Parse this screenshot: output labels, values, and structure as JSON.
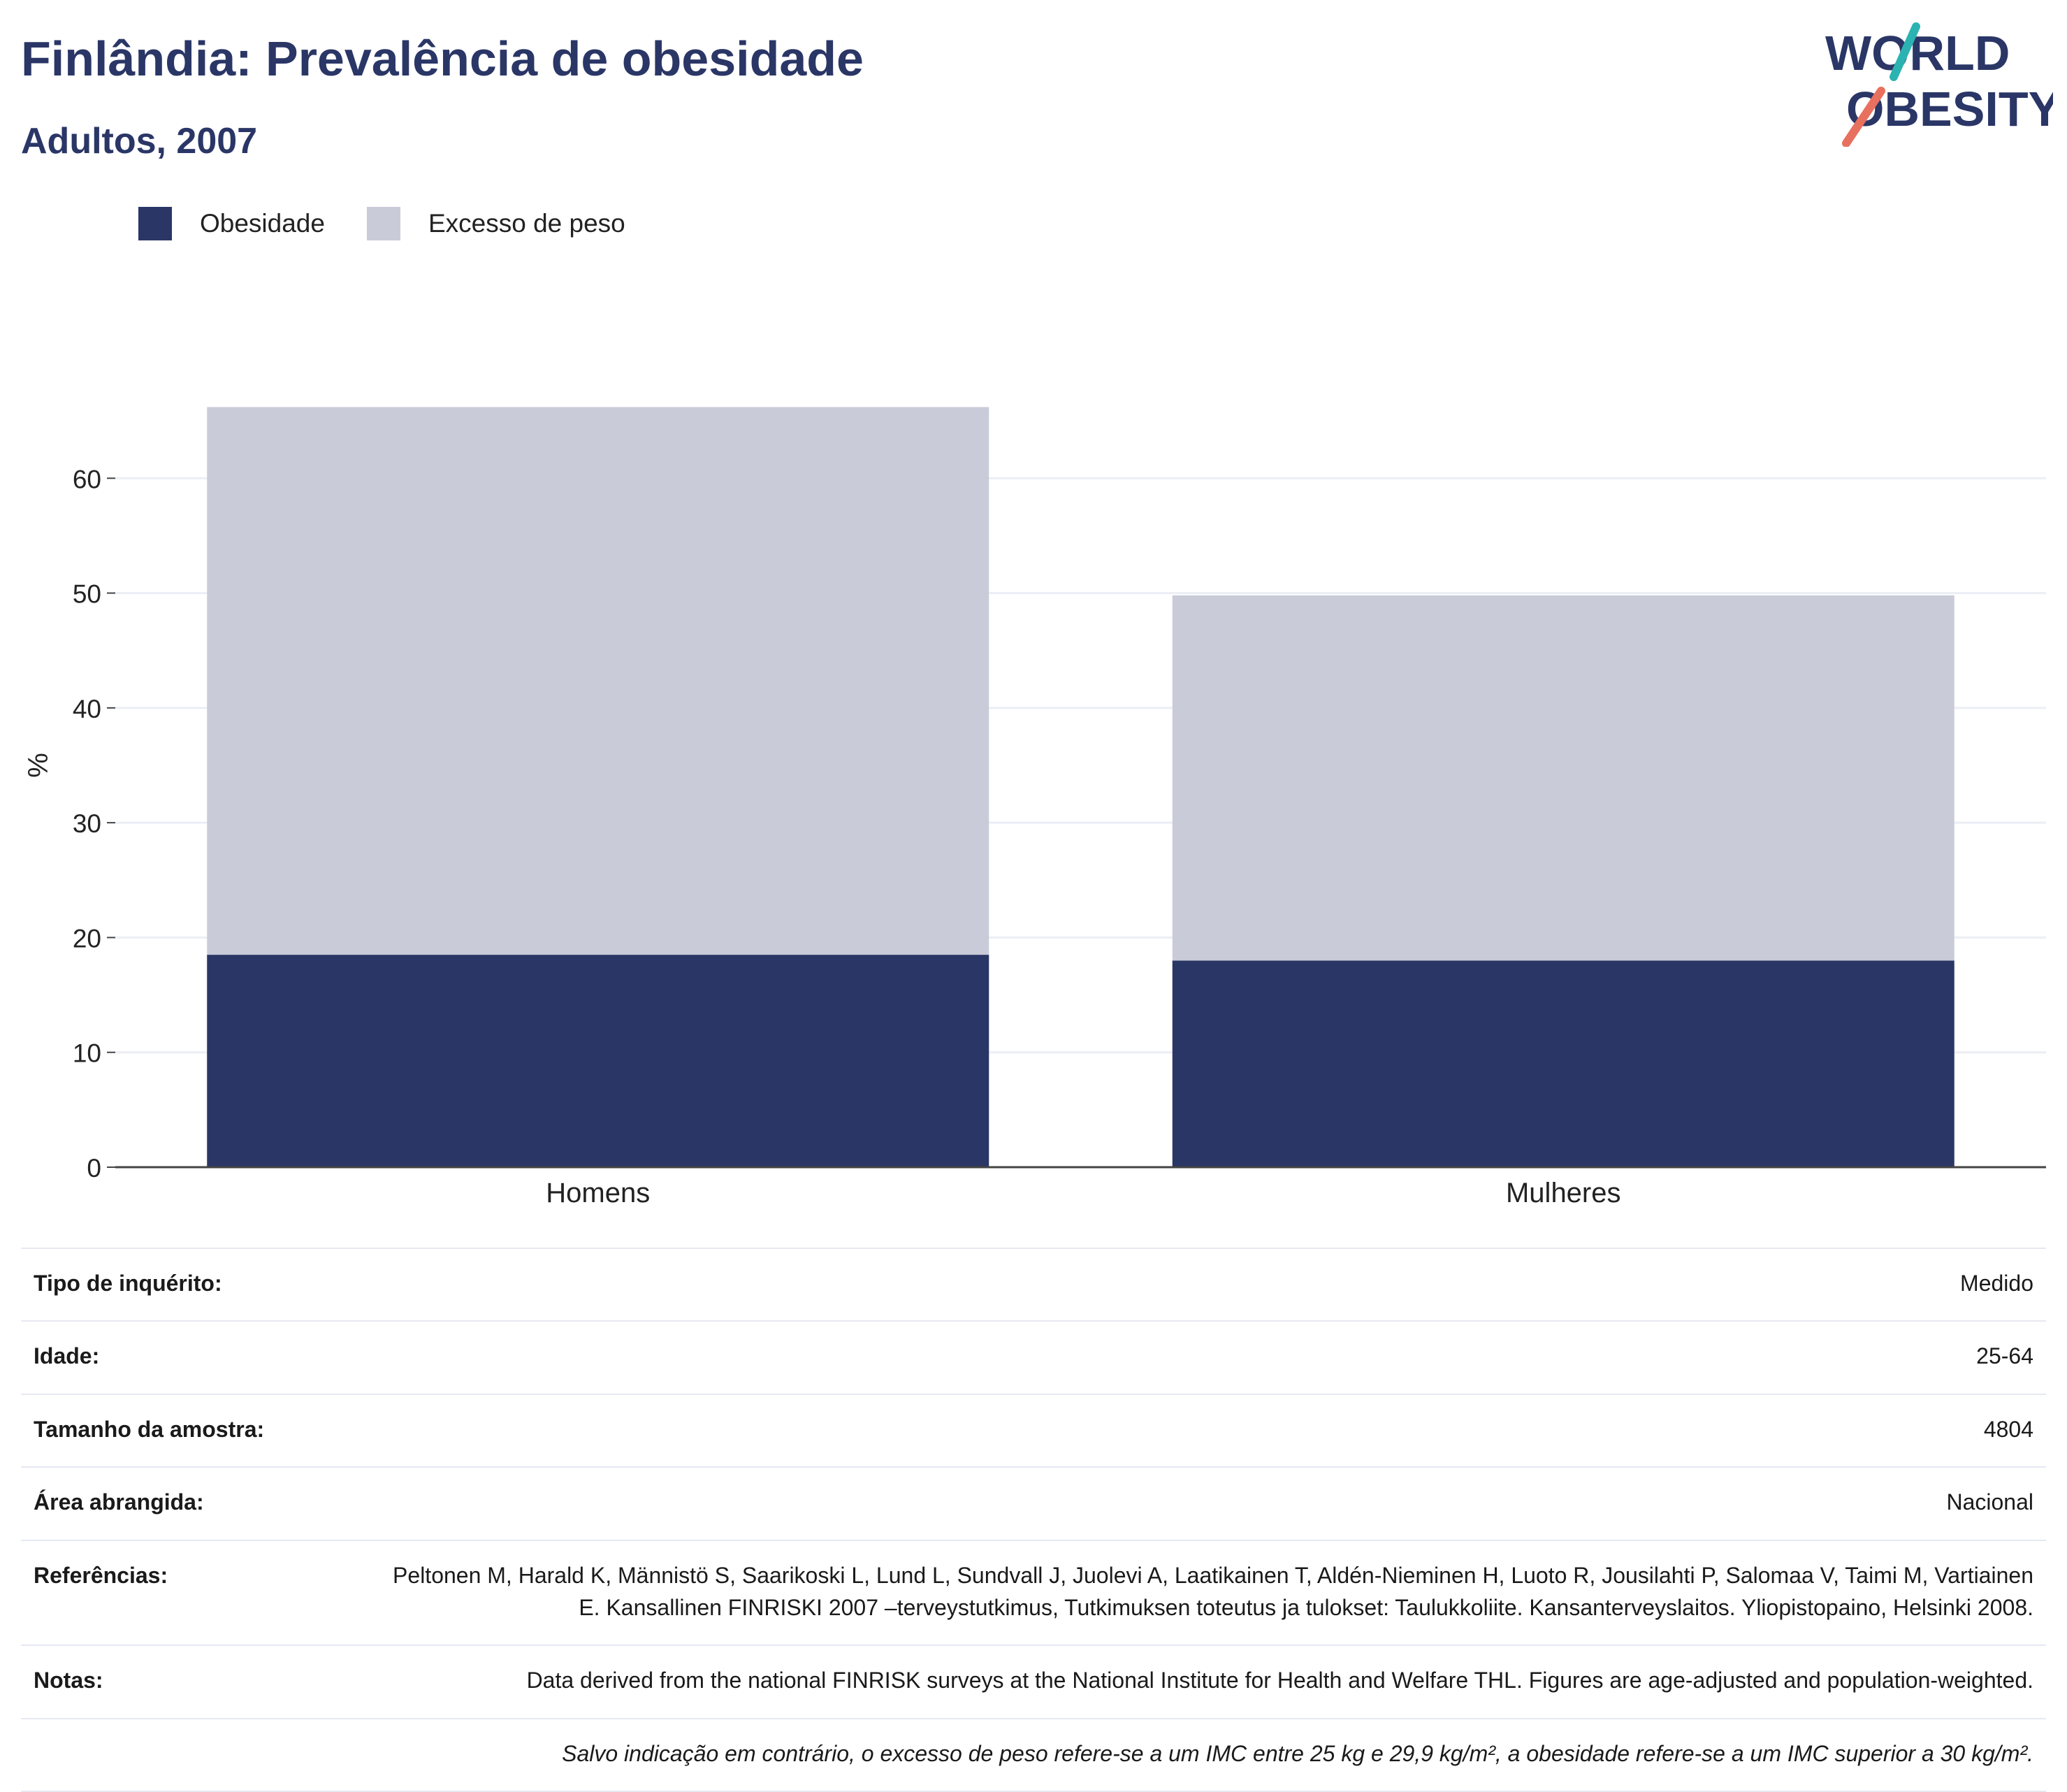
{
  "header": {
    "title": "Finlândia: Prevalência de obesidade",
    "subtitle": "Adultos, 2007"
  },
  "logo": {
    "line1": "WORLD",
    "line2": "OBESITY",
    "icon": "world-obesity-logo"
  },
  "colors": {
    "obesity": "#2a3666",
    "overweight": "#c9ccd8",
    "title": "#2a3666",
    "logo_teal": "#2bb3b1",
    "logo_coral": "#e8705f"
  },
  "chart_data": {
    "type": "bar",
    "stacked": true,
    "categories": [
      "Homens",
      "Mulheres"
    ],
    "series": [
      {
        "name": "Obesidade",
        "values": [
          18.5,
          18.0
        ]
      },
      {
        "name": "Excesso de peso",
        "values": [
          47.7,
          31.8
        ]
      }
    ],
    "ylabel": "%",
    "xlabel": "",
    "ylim": [
      0,
      70
    ],
    "yticks": [
      0,
      10,
      20,
      30,
      40,
      50,
      60
    ],
    "grid": true,
    "legend": "top-left"
  },
  "info": {
    "rows": [
      {
        "key": "Tipo de inquérito:",
        "value": "Medido"
      },
      {
        "key": "Idade:",
        "value": "25-64"
      },
      {
        "key": "Tamanho da amostra:",
        "value": "4804"
      },
      {
        "key": "Área abrangida:",
        "value": "Nacional"
      },
      {
        "key": "Referências:",
        "value": "Peltonen M, Harald K, Männistö S, Saarikoski L, Lund L, Sundvall J, Juolevi A, Laatikainen T, Aldén-Nieminen H, Luoto R, Jousilahti P, Salomaa V, Taimi M, Vartiainen E. Kansallinen FINRISKI 2007 –terveystutkimus, Tutkimuksen toteutus ja tulokset: Taulukkoliite. Kansanterveyslaitos. Yliopistopaino, Helsinki 2008."
      },
      {
        "key": "Notas:",
        "value": "Data derived from the national FINRISK surveys at the National Institute for Health and Welfare THL. Figures are age-adjusted and population-weighted."
      }
    ],
    "footnote": "Salvo indicação em contrário, o excesso de peso refere-se a um IMC entre 25 kg e 29,9 kg/m², a obesidade refere-se a um IMC superior a 30 kg/m²."
  }
}
